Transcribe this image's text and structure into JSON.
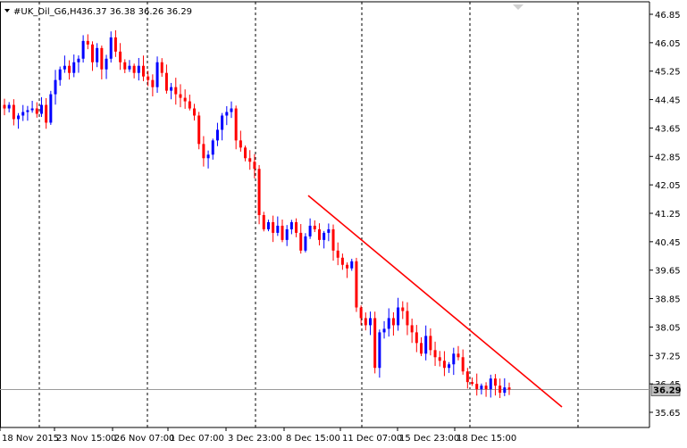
{
  "header": {
    "symbol": "#UK_Oil_G6,H4",
    "ohlc": "36.37 36.38 36.26 36.29"
  },
  "price_axis": {
    "current_price_label": "36.29"
  },
  "colors": {
    "bull": "#0000ff",
    "bear": "#ff0000",
    "trendline": "#ff0000",
    "grid": "#000000",
    "background": "#ffffff",
    "price_box": "#c0c0c0"
  },
  "chart_data": {
    "type": "candlestick",
    "title": "#UK_Oil_G6,H4",
    "timeframe": "H4",
    "ohlc_last": {
      "open": 36.37,
      "high": 36.38,
      "low": 36.26,
      "close": 36.29
    },
    "ylim": [
      35.4,
      46.95
    ],
    "y_ticks": [
      46.85,
      46.05,
      45.25,
      44.45,
      43.65,
      42.85,
      42.05,
      41.25,
      40.45,
      39.65,
      38.85,
      38.05,
      37.25,
      36.45,
      35.65
    ],
    "x_tick_labels": [
      "18 Nov 2015",
      "23 Nov 15:00",
      "26 Nov 07:00",
      "1 Dec 07:00",
      "3 Dec 23:00",
      "8 Dec 15:00",
      "11 Dec 07:00",
      "15 Dec 23:00",
      "18 Dec 15:00"
    ],
    "period_separators": [
      "23 Nov",
      "26 Nov",
      "1 Dec",
      "3 Dec",
      "8 Dec",
      "11 Dec",
      "15 Dec",
      "18 Dec",
      "22 Dec"
    ],
    "grid": "vertical dashed period separators",
    "current_price": 36.29,
    "close_series": [
      44.2,
      44.3,
      43.9,
      44.0,
      44.1,
      44.15,
      44.2,
      44.05,
      44.3,
      43.8,
      44.6,
      45.0,
      45.3,
      45.4,
      45.2,
      45.5,
      45.6,
      46.1,
      46.0,
      45.5,
      45.9,
      45.3,
      45.6,
      46.2,
      45.8,
      45.5,
      45.3,
      45.4,
      45.2,
      45.4,
      45.1,
      45.0,
      44.8,
      45.5,
      45.2,
      44.7,
      44.8,
      44.6,
      44.5,
      44.4,
      44.2,
      44.0,
      43.2,
      42.8,
      42.9,
      43.3,
      43.6,
      44.0,
      44.1,
      44.2,
      43.3,
      43.1,
      42.8,
      42.7,
      42.5,
      41.2,
      40.8,
      41.0,
      40.7,
      40.9,
      40.5,
      40.8,
      41.0,
      40.7,
      40.2,
      40.6,
      40.9,
      40.8,
      40.5,
      40.7,
      40.8,
      40.2,
      40.0,
      39.8,
      39.7,
      39.9,
      38.6,
      38.3,
      38.1,
      38.3,
      36.9,
      37.9,
      38.0,
      38.3,
      38.1,
      38.6,
      38.5,
      38.1,
      37.9,
      37.6,
      37.3,
      37.8,
      37.4,
      37.2,
      37.1,
      36.9,
      37.0,
      37.3,
      37.2,
      36.8,
      36.5,
      36.45,
      36.3,
      36.4,
      36.3,
      36.6,
      36.4,
      36.2,
      36.35,
      36.29
    ],
    "trendline": {
      "start": {
        "date": "8 Dec",
        "price": 41.75
      },
      "end": {
        "date": "22 Dec",
        "price": 35.8
      }
    }
  }
}
